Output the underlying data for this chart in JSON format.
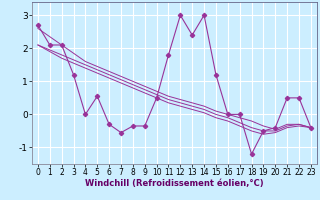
{
  "title": "",
  "xlabel": "Windchill (Refroidissement éolien,°C)",
  "ylabel": "",
  "background_color": "#cceeff",
  "grid_color": "#ffffff",
  "line_color": "#993399",
  "x": [
    0,
    1,
    2,
    3,
    4,
    5,
    6,
    7,
    8,
    9,
    10,
    11,
    12,
    13,
    14,
    15,
    16,
    17,
    18,
    19,
    20,
    21,
    22,
    23
  ],
  "y_main": [
    2.7,
    2.1,
    2.1,
    1.2,
    0.0,
    0.55,
    -0.3,
    -0.55,
    -0.35,
    -0.35,
    0.5,
    1.8,
    3.0,
    2.4,
    3.0,
    1.2,
    0.0,
    0.0,
    -1.2,
    -0.5,
    -0.4,
    0.5,
    0.5,
    -0.4
  ],
  "y_line1": [
    2.6,
    2.35,
    2.1,
    1.85,
    1.6,
    1.45,
    1.3,
    1.15,
    1.0,
    0.85,
    0.7,
    0.55,
    0.45,
    0.35,
    0.25,
    0.1,
    0.0,
    -0.1,
    -0.2,
    -0.35,
    -0.45,
    -0.3,
    -0.3,
    -0.4
  ],
  "y_line2": [
    2.1,
    1.9,
    1.7,
    1.55,
    1.4,
    1.25,
    1.1,
    0.95,
    0.8,
    0.65,
    0.5,
    0.35,
    0.25,
    0.15,
    0.05,
    -0.1,
    -0.2,
    -0.35,
    -0.5,
    -0.6,
    -0.55,
    -0.4,
    -0.35,
    -0.4
  ],
  "y_line3": [
    2.1,
    1.95,
    1.8,
    1.65,
    1.5,
    1.35,
    1.2,
    1.05,
    0.9,
    0.75,
    0.6,
    0.45,
    0.35,
    0.25,
    0.15,
    0.0,
    -0.1,
    -0.25,
    -0.4,
    -0.5,
    -0.5,
    -0.35,
    -0.3,
    -0.4
  ],
  "ylim": [
    -1.5,
    3.4
  ],
  "xlim": [
    -0.5,
    23.5
  ],
  "yticks": [
    -1,
    0,
    1,
    2,
    3
  ],
  "xticks": [
    0,
    1,
    2,
    3,
    4,
    5,
    6,
    7,
    8,
    9,
    10,
    11,
    12,
    13,
    14,
    15,
    16,
    17,
    18,
    19,
    20,
    21,
    22,
    23
  ]
}
